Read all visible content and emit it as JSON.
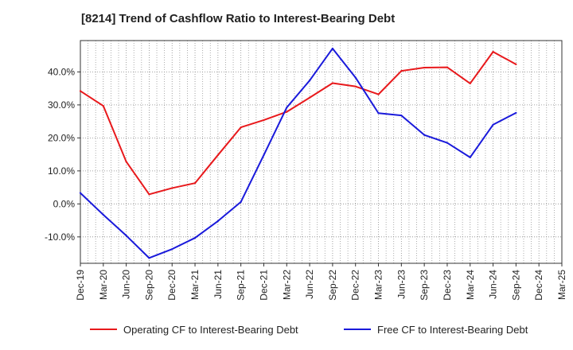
{
  "chart_data": {
    "type": "line",
    "title": "[8214]  Trend of Cashflow Ratio to Interest-Bearing Debt",
    "xlabel": "",
    "ylabel": "",
    "categories": [
      "Dec-19",
      "Mar-20",
      "Jun-20",
      "Sep-20",
      "Dec-20",
      "Mar-21",
      "Jun-21",
      "Sep-21",
      "Dec-21",
      "Mar-22",
      "Jun-22",
      "Sep-22",
      "Dec-22",
      "Mar-23",
      "Jun-23",
      "Sep-23",
      "Dec-23",
      "Mar-24",
      "Jun-24",
      "Sep-24",
      "Dec-24",
      "Mar-25"
    ],
    "yticks": [
      -10,
      0,
      10,
      20,
      30,
      40
    ],
    "ytick_labels": [
      "-10.0%",
      "0.0%",
      "10.0%",
      "20.0%",
      "30.0%",
      "40.0%"
    ],
    "ylim": [
      -18,
      49.5
    ],
    "grid": true,
    "legend_position": "bottom",
    "series": [
      {
        "name": "Operating CF to Interest-Bearing Debt",
        "color": "#e8191c",
        "values": [
          34.2,
          29.7,
          12.8,
          2.9,
          4.8,
          6.3,
          14.8,
          23.2,
          25.4,
          27.9,
          32.2,
          36.6,
          35.6,
          33.2,
          40.3,
          41.3,
          41.4,
          36.5,
          46.1,
          42.3,
          null,
          null
        ]
      },
      {
        "name": "Free CF to Interest-Bearing Debt",
        "color": "#1a1adb",
        "values": [
          3.3,
          -3.3,
          -9.6,
          -16.4,
          -13.7,
          -10.3,
          -5.2,
          0.6,
          14.8,
          29.2,
          37.4,
          47.1,
          38.3,
          27.5,
          26.8,
          20.9,
          18.5,
          14.1,
          24.0,
          27.6,
          null,
          null
        ]
      }
    ]
  }
}
